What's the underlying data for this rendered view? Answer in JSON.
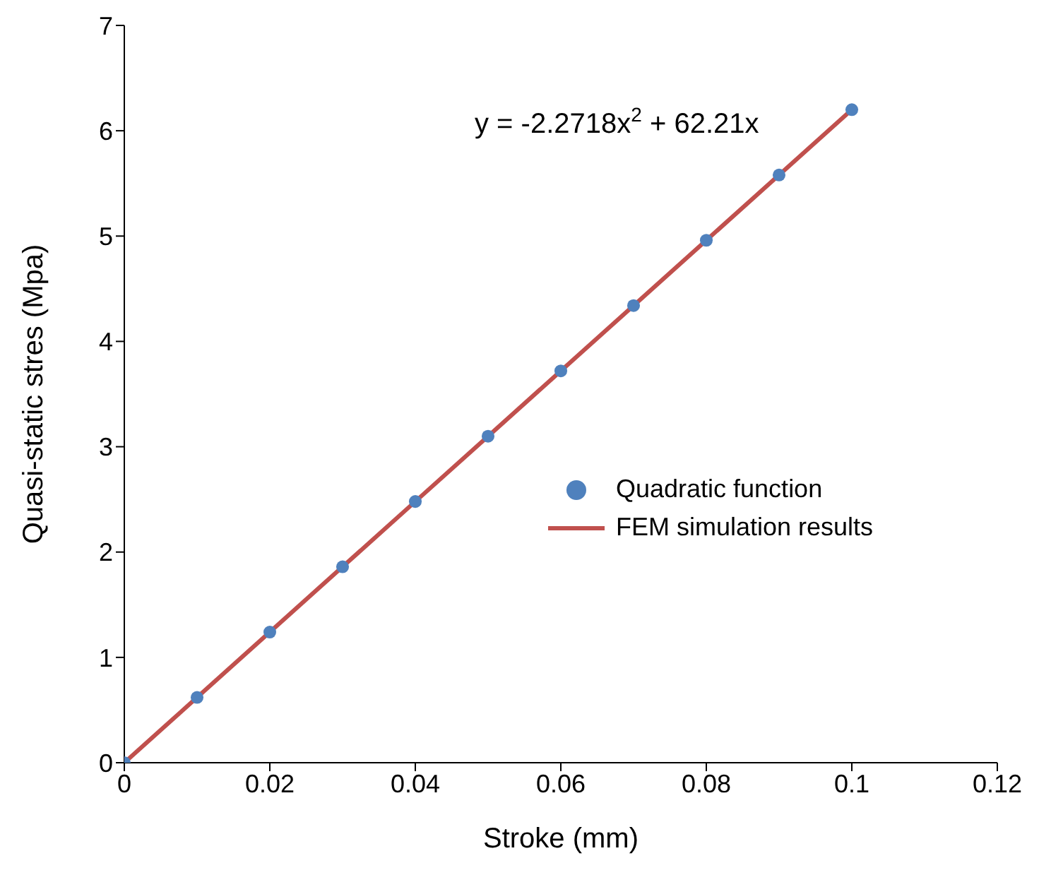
{
  "chart_data": {
    "type": "scatter",
    "xlabel": "Stroke (mm)",
    "ylabel": "Quasi-static stres (Mpa)",
    "x": [
      0,
      0.01,
      0.02,
      0.03,
      0.04,
      0.05,
      0.06,
      0.07,
      0.08,
      0.09,
      0.1
    ],
    "series": [
      {
        "name": "Quadratic function",
        "color": "#4f81bd",
        "marker": "circle",
        "values": [
          0,
          0.62,
          1.24,
          1.86,
          2.48,
          3.1,
          3.72,
          4.34,
          4.96,
          5.58,
          6.2
        ]
      },
      {
        "name": "FEM simulation results",
        "type": "line",
        "color": "#c0504d",
        "marker": "none",
        "values": [
          0,
          0.62,
          1.24,
          1.86,
          2.48,
          3.1,
          3.72,
          4.34,
          4.96,
          5.58,
          6.2
        ]
      }
    ],
    "xlim": [
      0,
      0.12
    ],
    "xticks": [
      0,
      0.02,
      0.04,
      0.06,
      0.08,
      0.1,
      0.12
    ],
    "ylim": [
      0,
      7
    ],
    "yticks": [
      0,
      1,
      2,
      3,
      4,
      5,
      6,
      7
    ],
    "grid": false,
    "legend": "right",
    "annotations": [
      "y = -2.2718x$^{2}$ + 62.21x"
    ]
  }
}
